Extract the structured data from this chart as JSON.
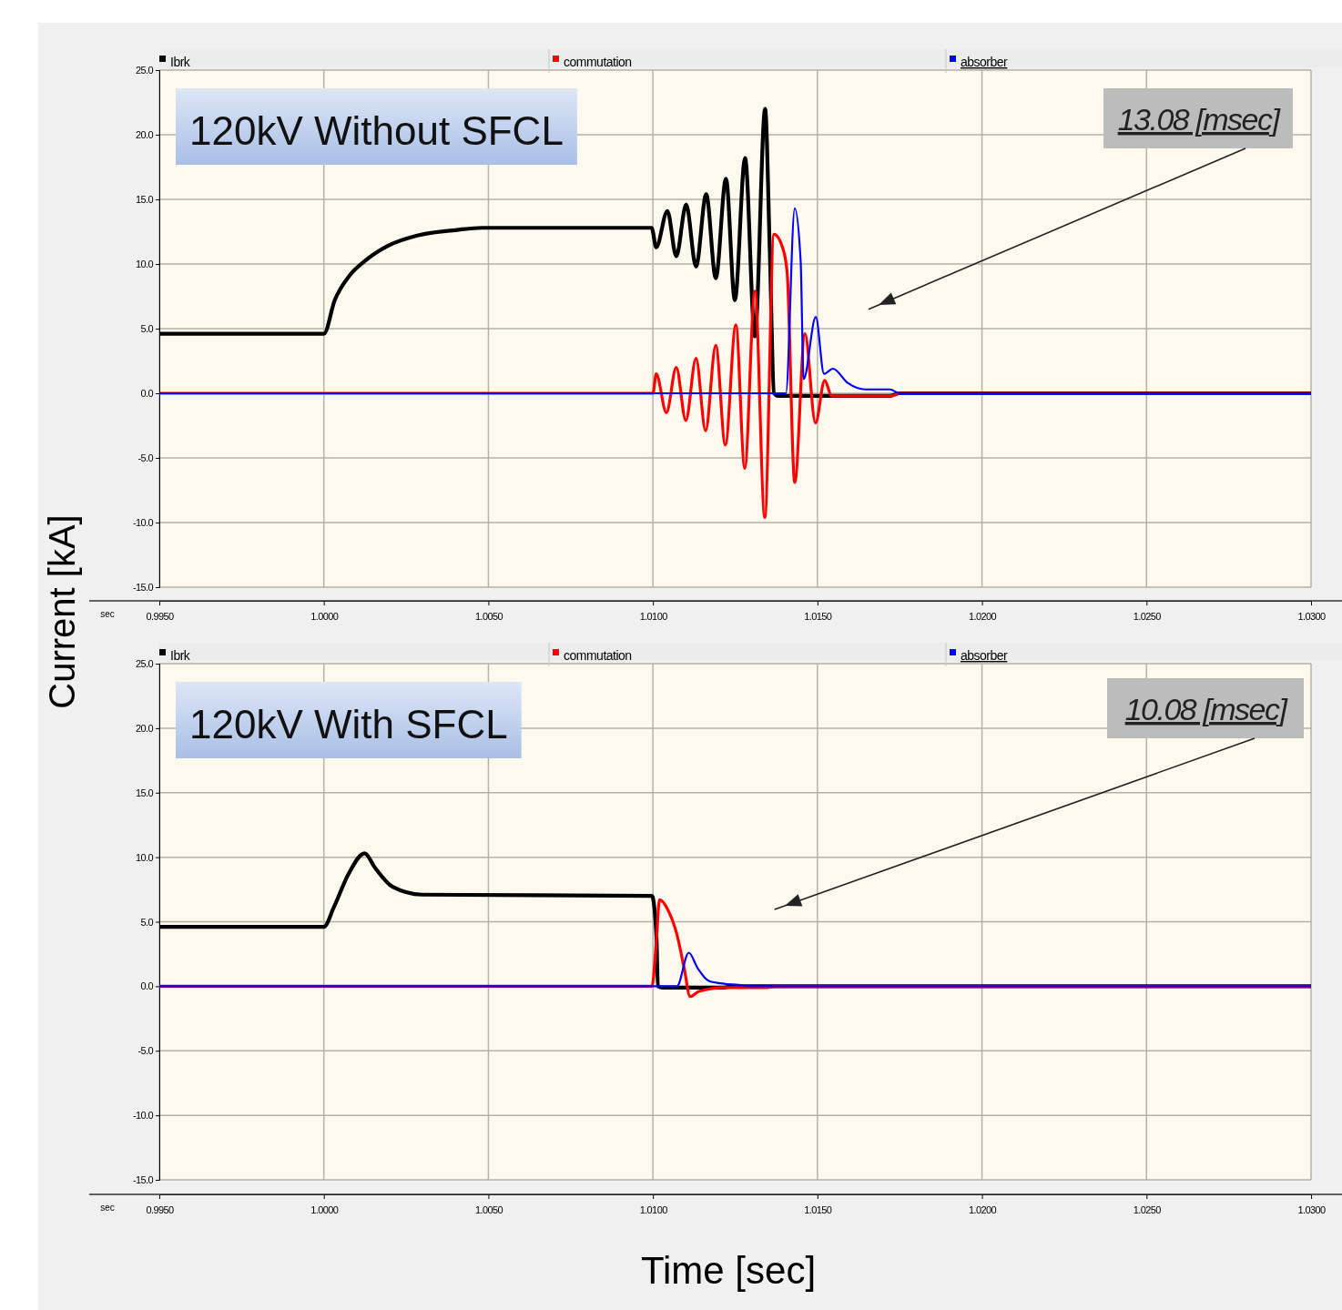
{
  "chart_data": [
    {
      "type": "line",
      "title": "120kV Without SFCL",
      "ylabel": "Current [kA]",
      "legend": "top",
      "grid": true,
      "xlim": [
        0.995,
        1.03
      ],
      "xticks": [
        {
          "value": 0.995,
          "label": "0.9950"
        },
        {
          "value": 1.0,
          "label": "1.0000"
        },
        {
          "value": 1.005,
          "label": "1.0050"
        },
        {
          "value": 1.01,
          "label": "1.0100"
        },
        {
          "value": 1.015,
          "label": "1.0150"
        },
        {
          "value": 1.02,
          "label": "1.0200"
        },
        {
          "value": 1.025,
          "label": "1.0250"
        },
        {
          "value": 1.03,
          "label": "1.0300"
        }
      ],
      "ylim": [
        -15,
        25
      ],
      "yticks": [
        {
          "value": -15,
          "label": "-15.0"
        },
        {
          "value": -10,
          "label": "-10.0"
        },
        {
          "value": -5,
          "label": "-5.0"
        },
        {
          "value": 0,
          "label": "0.0"
        },
        {
          "value": 5,
          "label": "5.0"
        },
        {
          "value": 10,
          "label": "10.0"
        },
        {
          "value": 15,
          "label": "15.0"
        },
        {
          "value": 20,
          "label": "20.0"
        },
        {
          "value": 25,
          "label": "25.0"
        }
      ],
      "annotations": [
        "sec",
        "13.08 [msec]"
      ],
      "series": [
        {
          "name": "Ibrk",
          "color": "#000000",
          "x": [
            0.995,
            1.0,
            1.00033,
            1.00078,
            1.00123,
            1.00194,
            1.00284,
            1.00392,
            1.00481,
            1.00996,
            1.0101,
            1.01044,
            1.01071,
            1.01101,
            1.01131,
            1.01162,
            1.01191,
            1.01222,
            1.01249,
            1.0128,
            1.0131,
            1.01341,
            1.01355,
            1.01368,
            1.0138,
            1.0172,
            1.0175,
            1.03
          ],
          "values": [
            4.6,
            4.6,
            7.2,
            9.1,
            10.2,
            11.4,
            12.2,
            12.6,
            12.8,
            12.8,
            11.3,
            14.1,
            10.6,
            14.6,
            9.8,
            15.4,
            8.9,
            16.6,
            7.2,
            18.2,
            4.4,
            22.0,
            11.2,
            0,
            -0.2,
            -0.2,
            0,
            0
          ]
        },
        {
          "name": "commutation",
          "color": "#ff0000",
          "x": [
            0.995,
            1.01,
            1.0101,
            1.01041,
            1.01071,
            1.011,
            1.01131,
            1.0116,
            1.01191,
            1.0122,
            1.01252,
            1.01279,
            1.0131,
            1.0134,
            1.01368,
            1.01395,
            1.01408,
            1.01431,
            1.01462,
            1.01494,
            1.01522,
            1.01543,
            1.01726,
            1.0175,
            1.03
          ],
          "values": [
            0,
            0,
            1.5,
            -1.5,
            2.0,
            -2.1,
            2.7,
            -2.9,
            3.7,
            -4.0,
            5.3,
            -5.8,
            7.9,
            -9.6,
            12.3,
            11.2,
            9.3,
            -6.9,
            4.6,
            -2.3,
            1.0,
            -0.2,
            -0.2,
            0,
            0
          ]
        },
        {
          "name": "absorber",
          "color": "#0000ff",
          "x": [
            0.995,
            1.01404,
            1.01431,
            1.01449,
            1.01458,
            1.01495,
            1.0152,
            1.01547,
            1.01592,
            1.01646,
            1.0172,
            1.0175,
            1.03
          ],
          "values": [
            0,
            0,
            14.3,
            10.2,
            1.1,
            5.9,
            1.5,
            1.9,
            0.8,
            0.3,
            0.3,
            0,
            0
          ]
        }
      ]
    },
    {
      "type": "line",
      "title": "120kV With SFCL",
      "xlabel": "Time [sec]",
      "legend": "top",
      "grid": true,
      "xlim": [
        0.995,
        1.03
      ],
      "xticks": [
        {
          "value": 0.995,
          "label": "0.9950"
        },
        {
          "value": 1.0,
          "label": "1.0000"
        },
        {
          "value": 1.005,
          "label": "1.0050"
        },
        {
          "value": 1.01,
          "label": "1.0100"
        },
        {
          "value": 1.015,
          "label": "1.0150"
        },
        {
          "value": 1.02,
          "label": "1.0200"
        },
        {
          "value": 1.025,
          "label": "1.0250"
        },
        {
          "value": 1.03,
          "label": "1.0300"
        }
      ],
      "ylim": [
        -15,
        25
      ],
      "yticks": [
        {
          "value": -15,
          "label": "-15.0"
        },
        {
          "value": -10,
          "label": "-10.0"
        },
        {
          "value": -5,
          "label": "-5.0"
        },
        {
          "value": 0,
          "label": "0.0"
        },
        {
          "value": 5,
          "label": "5.0"
        },
        {
          "value": 10,
          "label": "10.0"
        },
        {
          "value": 15,
          "label": "15.0"
        },
        {
          "value": 20,
          "label": "20.0"
        },
        {
          "value": 25,
          "label": "25.0"
        }
      ],
      "annotations": [
        "sec",
        "10.08 [msec]"
      ],
      "series": [
        {
          "name": "Ibrk",
          "color": "#000000",
          "x": [
            0.995,
            1.0,
            1.0003,
            1.00075,
            1.00124,
            1.00155,
            1.00209,
            1.00298,
            1.00997,
            1.01011,
            1.01015,
            1.0103,
            1.01216,
            1.0124,
            1.03
          ],
          "values": [
            4.6,
            4.6,
            6.1,
            8.7,
            10.3,
            9.2,
            7.7,
            7.1,
            7.0,
            3.7,
            0,
            -0.1,
            -0.1,
            0,
            0
          ]
        },
        {
          "name": "commutation",
          "color": "#ff0000",
          "x": [
            0.995,
            1.00997,
            1.01011,
            1.0102,
            1.01046,
            1.01073,
            1.01095,
            1.01113,
            1.0114,
            1.01216,
            1.01349,
            1.0137,
            1.03
          ],
          "values": [
            0,
            0,
            3.7,
            6.7,
            5.9,
            4.0,
            1.4,
            -0.8,
            -0.4,
            -0.1,
            -0.1,
            0,
            0
          ]
        },
        {
          "name": "absorber",
          "color": "#0000ff",
          "x": [
            0.995,
            1.01073,
            1.01109,
            1.01136,
            1.01171,
            1.01216,
            1.0126,
            1.0129,
            1.03
          ],
          "values": [
            0,
            0,
            2.6,
            1.4,
            0.4,
            0.2,
            0.1,
            0,
            0
          ]
        }
      ]
    }
  ]
}
